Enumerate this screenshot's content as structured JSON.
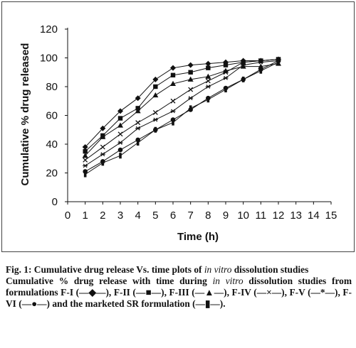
{
  "chart_data": {
    "type": "line",
    "xlabel": "Time (h)",
    "ylabel": "Cumulative % drug released",
    "xlim": [
      0,
      15
    ],
    "ylim": [
      0,
      120
    ],
    "xticks": [
      0,
      1,
      2,
      3,
      4,
      5,
      6,
      7,
      8,
      9,
      10,
      11,
      12,
      13,
      14,
      15
    ],
    "yticks": [
      0,
      20,
      40,
      60,
      80,
      100,
      120
    ],
    "grid": false,
    "legend": "none",
    "x": [
      1,
      2,
      3,
      4,
      5,
      6,
      7,
      8,
      9,
      10,
      11,
      12
    ],
    "series": [
      {
        "name": "F-I",
        "marker": "diamond",
        "values": [
          38,
          51,
          63,
          72,
          85,
          93,
          95,
          96,
          97,
          98,
          98,
          99
        ]
      },
      {
        "name": "F-II",
        "marker": "square",
        "values": [
          35,
          46,
          58,
          65,
          80,
          88,
          90,
          93,
          95,
          97,
          98,
          99
        ]
      },
      {
        "name": "F-III",
        "marker": "triangle",
        "values": [
          32,
          45,
          53,
          63,
          74,
          82,
          85,
          87,
          91,
          94,
          94,
          96
        ]
      },
      {
        "name": "F-IV",
        "marker": "x",
        "values": [
          29,
          38,
          47,
          55,
          62,
          70,
          78,
          84,
          90,
          97,
          98,
          99
        ]
      },
      {
        "name": "F-V",
        "marker": "star",
        "values": [
          25,
          33,
          41,
          51,
          57,
          63,
          72,
          80,
          86,
          95,
          97,
          98
        ]
      },
      {
        "name": "F-VI",
        "marker": "circle",
        "values": [
          21,
          28,
          36,
          43,
          50,
          57,
          64,
          72,
          79,
          85,
          92,
          98
        ]
      },
      {
        "name": "marketed SR formulation",
        "marker": "bar",
        "values": [
          19,
          27,
          32,
          41,
          50,
          55,
          65,
          71,
          78,
          85,
          91,
          97
        ]
      }
    ]
  },
  "caption": {
    "fig_prefix": "Fig. 1: Cumulative drug release Vs. time plots of ",
    "fig_italic": "in vitro",
    "fig_suffix": " dissolution studies",
    "desc_prefix": "Cumulative % drug release with time during ",
    "desc_italic": "in vitro",
    "desc_suffix": " dissolution studies from formulations F-I (—◆—), F-II (—■—), F-III (—▲—), F-IV (—×—), F-V (—*—), F-VI (—●—) and the marketed SR formulation (—▮—)."
  }
}
